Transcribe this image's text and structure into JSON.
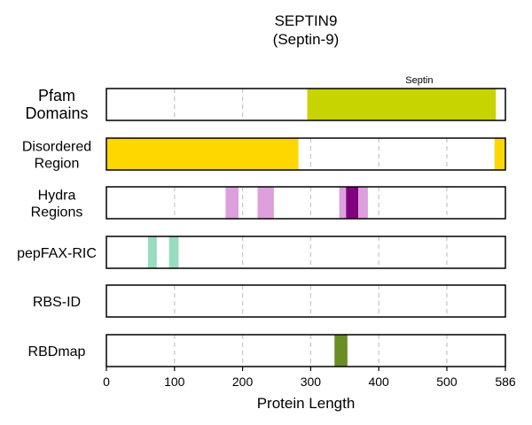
{
  "chart_data": {
    "type": "track",
    "title": "SEPTIN9",
    "subtitle": "(Septin-9)",
    "xlabel": "Protein Length",
    "xlim": [
      0,
      586
    ],
    "xticks": [
      0,
      100,
      200,
      300,
      400,
      500,
      586
    ],
    "grid": true,
    "tracks": [
      {
        "label": [
          "Pfam",
          "Domains"
        ],
        "segments": [
          {
            "start": 295,
            "end": 572,
            "color": "#c8d400",
            "label": "Septin"
          }
        ]
      },
      {
        "label": [
          "Disordered",
          "Region"
        ],
        "segments": [
          {
            "start": 0,
            "end": 282,
            "color": "#ffd700"
          },
          {
            "start": 570,
            "end": 586,
            "color": "#ffd700"
          }
        ]
      },
      {
        "label": [
          "Hydra",
          "Regions"
        ],
        "segments": [
          {
            "start": 175,
            "end": 194,
            "color": "#dda0dd"
          },
          {
            "start": 222,
            "end": 246,
            "color": "#dda0dd"
          },
          {
            "start": 342,
            "end": 352,
            "color": "#dda0dd"
          },
          {
            "start": 352,
            "end": 370,
            "color": "#800080"
          },
          {
            "start": 370,
            "end": 384,
            "color": "#dda0dd"
          }
        ]
      },
      {
        "label": [
          "pepFAX-RIC"
        ],
        "segments": [
          {
            "start": 61,
            "end": 74,
            "color": "#99dcc0"
          },
          {
            "start": 92,
            "end": 106,
            "color": "#99dcc0"
          }
        ]
      },
      {
        "label": [
          "RBS-ID"
        ],
        "segments": []
      },
      {
        "label": [
          "RBDmap"
        ],
        "segments": [
          {
            "start": 335,
            "end": 354,
            "color": "#6b8e23"
          }
        ]
      }
    ]
  }
}
